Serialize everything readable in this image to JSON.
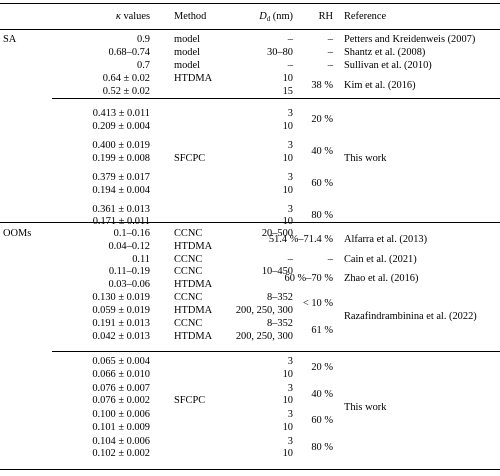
{
  "header": {
    "kappa_symbol": "κ",
    "kappa_suffix": " values",
    "method": "Method",
    "dd_symbol": "D",
    "dd_sub": "d",
    "dd_unit": " (nm)",
    "rh": "RH",
    "reference": "Reference"
  },
  "sa": {
    "group_label": "SA",
    "kappa": [
      "0.9",
      "0.68–0.74",
      "0.7",
      "0.64 ± 0.02",
      "0.52 ± 0.02",
      "0.413 ± 0.011",
      "0.209 ± 0.004",
      "0.400 ± 0.019",
      "0.199 ± 0.008",
      "0.379 ± 0.017",
      "0.194 ± 0.004",
      "0.361 ± 0.013",
      "0.171 ± 0.011"
    ],
    "method": [
      "model",
      "model",
      "model",
      "HTDMA",
      "",
      "",
      "",
      "",
      "SFCPC",
      "",
      "",
      "",
      ""
    ],
    "dd": [
      "–",
      "30–80",
      "–",
      "10",
      "15",
      "3",
      "10",
      "3",
      "10",
      "3",
      "10",
      "3",
      "10"
    ],
    "rh": [
      "–",
      "–",
      "–",
      "38 %"
    ],
    "rh_groups": [
      "20 %",
      "40 %",
      "60 %",
      "80 %"
    ],
    "reference": [
      "Petters and Kreidenweis (2007)",
      "Shantz et al. (2008)",
      "Sullivan et al. (2010)",
      "Kim et al. (2016)"
    ],
    "this_work": "This work"
  },
  "ooms": {
    "group_label": "OOMs",
    "kappa": [
      "0.1–0.16",
      "0.04–0.12",
      "0.11",
      "0.11–0.19",
      "0.03–0.06",
      "0.130 ± 0.019",
      "0.059 ± 0.019",
      "0.191 ± 0.013",
      "0.042 ± 0.013",
      "0.065 ± 0.004",
      "0.066 ± 0.010",
      "0.076 ± 0.007",
      "0.076 ± 0.002",
      "0.100 ± 0.006",
      "0.101 ± 0.009",
      "0.104 ± 0.006",
      "0.102 ± 0.002"
    ],
    "method": [
      "CCNC",
      "HTDMA",
      "CCNC",
      "CCNC",
      "HTDMA",
      "CCNC",
      "HTDMA",
      "CCNC",
      "HTDMA",
      "",
      "",
      "",
      "SFCPC",
      "",
      "",
      "",
      ""
    ],
    "dd": [
      "20–500",
      "",
      "–",
      "10–450",
      "",
      "8–352",
      "200, 250, 300",
      "8–352",
      "200, 250, 300",
      "3",
      "10",
      "3",
      "10",
      "3",
      "10",
      "3",
      "10"
    ],
    "rh_upper": [
      "51.4 %–71.4 %",
      "–",
      "60 %–70 %",
      "< 10 %",
      "61 %"
    ],
    "rh_groups": [
      "20 %",
      "40 %",
      "60 %",
      "80 %"
    ],
    "reference": [
      "Alfarra et al. (2013)",
      "Cain et al. (2021)",
      "Zhao et al. (2016)",
      "Razafindrambinina et al. (2022)"
    ],
    "this_work": "This work"
  }
}
